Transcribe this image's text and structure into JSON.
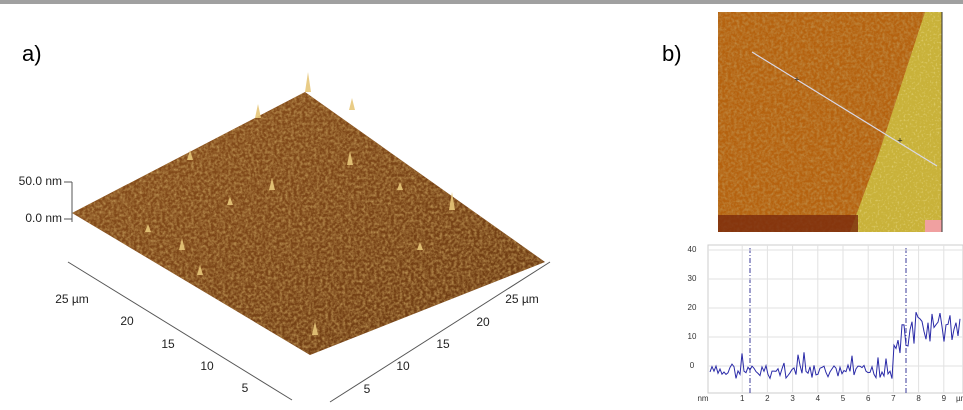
{
  "panel_a": {
    "label": "a)",
    "z_axis": {
      "ticks": [
        "50.0 nm",
        "0.0 nm"
      ]
    },
    "left_axis": {
      "ticks": [
        "25 µm",
        20,
        15,
        10,
        5
      ]
    },
    "right_axis": {
      "ticks": [
        "25 µm",
        20,
        15,
        10,
        5
      ]
    }
  },
  "panel_b": {
    "label": "b)",
    "profile": {
      "y_ticks": [
        40,
        30,
        20,
        10,
        0
      ],
      "x_unit": "nm",
      "x_ticks": [
        1,
        2,
        3,
        4,
        5,
        6,
        7,
        8,
        9
      ],
      "x_end": "µm"
    }
  }
}
